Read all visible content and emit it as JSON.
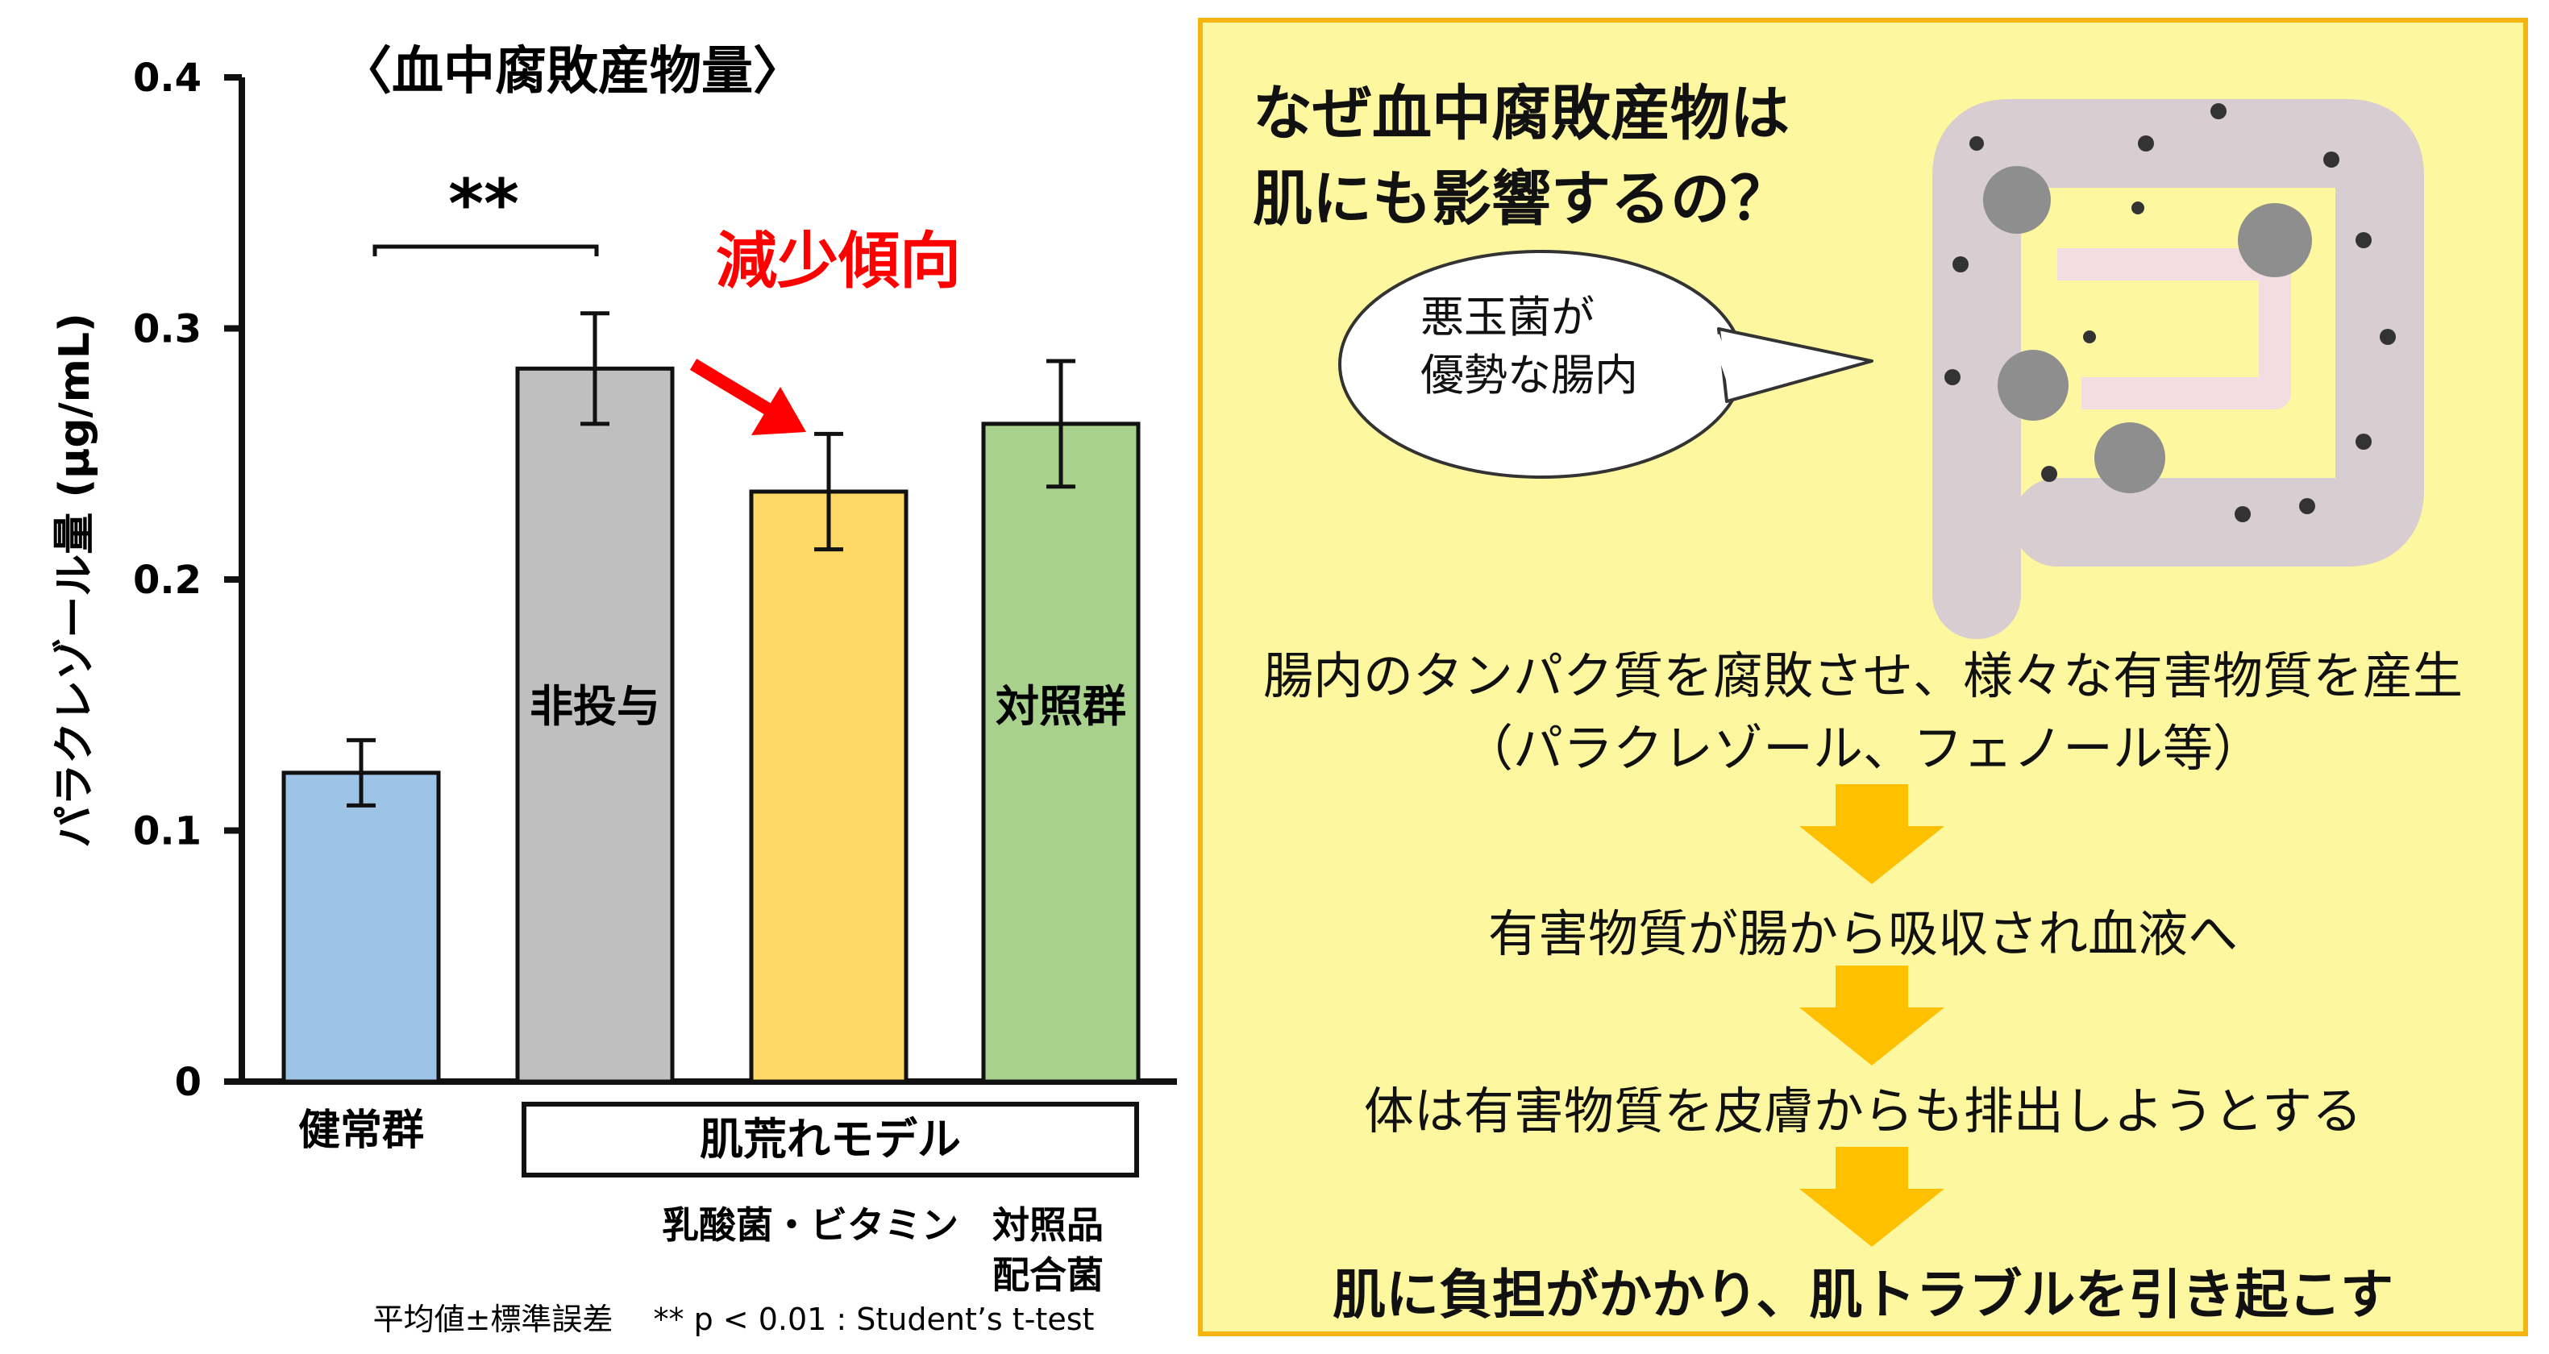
{
  "chart_data": {
    "type": "bar",
    "title": "〈血中腐敗産物量〉",
    "ylabel": "パラクレゾール量 (μg/mL)",
    "ylim": [
      0,
      0.4
    ],
    "yticks": [
      "0",
      "0.1",
      "0.2",
      "0.3",
      "0.4"
    ],
    "categories": [
      "健常群",
      "非投与",
      "乳酸菌・ビタミン",
      "対照品配合菌"
    ],
    "values": [
      0.123,
      0.284,
      0.235,
      0.262
    ],
    "errors": [
      0.013,
      0.022,
      0.023,
      0.025
    ],
    "colors": [
      "#9dc3e6",
      "#bfbfbf",
      "#ffd966",
      "#a9d18e"
    ],
    "bar_labels": [
      "",
      "非投与",
      "",
      "対照群"
    ],
    "group_label": "肌荒れモデル",
    "sublabels": [
      "乳酸菌・ビタミン",
      "対照品\n配合菌"
    ],
    "significance": "**",
    "trend_label": "減少傾向",
    "trend_color": "#ff0000",
    "footnote": "平均値±標準誤差　 ** p < 0.01 : Student’s t-test"
  },
  "panel": {
    "title_line1": "なぜ血中腐敗産物は",
    "title_line2": "肌にも影響するの？",
    "bubble_line1": "悪玉菌が",
    "bubble_line2": "優勢な腸内",
    "step1_line1": "腸内のタンパク質を腐敗させ、様々な有害物質を産生",
    "step1_line2": "（パラクレゾール、フェノール等）",
    "step2": "有害物質が腸から吸収され血液へ",
    "step3": "体は有害物質を皮膚からも排出しようとする",
    "step4": "肌に負担がかかり、肌トラブルを引き起こす",
    "arrow_color": "#ffc000",
    "border_color": "#f4b512",
    "background_color": "#fdf7a0"
  }
}
